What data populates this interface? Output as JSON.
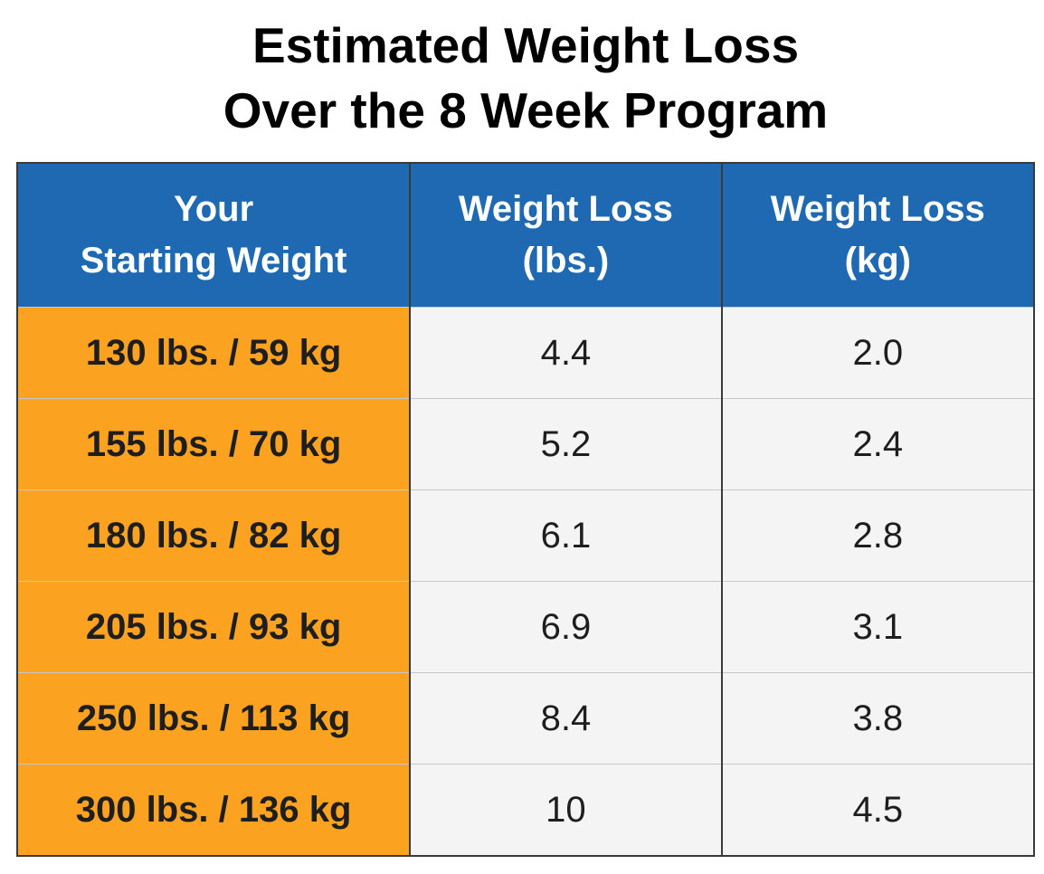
{
  "title_line1": "Estimated Weight Loss",
  "title_line2": "Over the 8 Week Program",
  "colors": {
    "header": "#1f69b3",
    "first_column": "#fba321",
    "cells": "#f4f4f4"
  },
  "chart_data": {
    "type": "table",
    "title": "Estimated Weight Loss Over the 8 Week Program",
    "columns": [
      {
        "line1": "Your",
        "line2": "Starting Weight"
      },
      {
        "line1": "Weight Loss",
        "line2": "(lbs.)"
      },
      {
        "line1": "Weight Loss",
        "line2": "(kg)"
      }
    ],
    "rows": [
      [
        "130 lbs. / 59 kg",
        "4.4",
        "2.0"
      ],
      [
        "155 lbs. / 70 kg",
        "5.2",
        "2.4"
      ],
      [
        "180 lbs. / 82 kg",
        "6.1",
        "2.8"
      ],
      [
        "205 lbs. / 93 kg",
        "6.9",
        "3.1"
      ],
      [
        "250 lbs. / 113 kg",
        "8.4",
        "3.8"
      ],
      [
        "300 lbs. / 136 kg",
        "10",
        "4.5"
      ]
    ]
  }
}
